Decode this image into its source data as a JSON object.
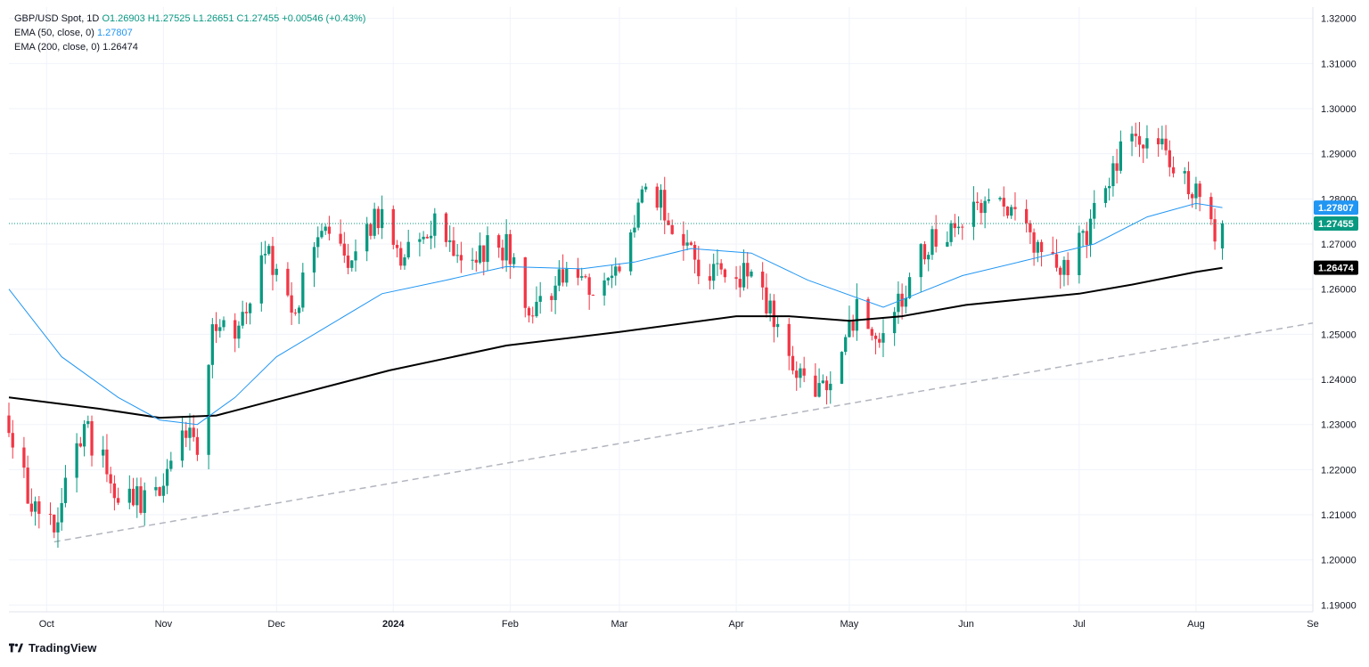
{
  "legend": {
    "symbol": "GBP/USD Spot, 1D",
    "ohlc": "O1.26903 H1.27525 L1.26651 C1.27455 +0.00546 (+0.43%)",
    "ema50_label": "EMA (50, close, 0)",
    "ema50_value": "1.27807",
    "ema200_label": "EMA (200, close, 0)",
    "ema200_value": "1.26474"
  },
  "branding": {
    "name": "TradingView",
    "icon": "tradingview-logo-icon"
  },
  "colors": {
    "up": "#089981",
    "down": "#f23645",
    "ema50": "#2196f3",
    "ema200": "#000000",
    "trendline": "#b2b5be",
    "grid": "#f0f3fa",
    "price_line": "#089981"
  },
  "chart_data": {
    "type": "candlestick",
    "title": "GBP/USD Spot, 1D",
    "ylim": [
      1.1885,
      1.3225
    ],
    "grid": true,
    "y_ticks": [
      "1.32000",
      "1.31000",
      "1.30000",
      "1.29000",
      "1.28000",
      "1.27000",
      "1.26000",
      "1.25000",
      "1.24000",
      "1.23000",
      "1.22000",
      "1.21000",
      "1.20000",
      "1.19000"
    ],
    "x_labels": [
      {
        "label": "Oct",
        "date": "2023-10-01"
      },
      {
        "label": "Nov",
        "date": "2023-11-01"
      },
      {
        "label": "Dec",
        "date": "2023-12-01"
      },
      {
        "label": "2024",
        "date": "2024-01-01"
      },
      {
        "label": "Feb",
        "date": "2024-02-01"
      },
      {
        "label": "Mar",
        "date": "2024-03-01"
      },
      {
        "label": "Apr",
        "date": "2024-04-01"
      },
      {
        "label": "May",
        "date": "2024-05-01"
      },
      {
        "label": "Jun",
        "date": "2024-06-01"
      },
      {
        "label": "Jul",
        "date": "2024-07-01"
      },
      {
        "label": "Aug",
        "date": "2024-08-01"
      },
      {
        "label": "Se",
        "date": "2024-09-01"
      }
    ],
    "x_range": [
      "2023-09-21",
      "2024-09-01"
    ],
    "last_price": {
      "value": 1.27455,
      "label": "1.27455"
    },
    "ema50_tag": {
      "value": 1.27807,
      "label": "1.27807"
    },
    "ema200_tag": {
      "value": 1.26474,
      "label": "1.26474"
    },
    "anchors": [
      {
        "date": "2023-09-21",
        "close": 1.23
      },
      {
        "date": "2023-09-26",
        "close": 1.215
      },
      {
        "date": "2023-10-03",
        "close": 1.206
      },
      {
        "date": "2023-10-11",
        "close": 1.23
      },
      {
        "date": "2023-10-19",
        "close": 1.216
      },
      {
        "date": "2023-10-25",
        "close": 1.213
      },
      {
        "date": "2023-10-31",
        "close": 1.215
      },
      {
        "date": "2023-11-07",
        "close": 1.23
      },
      {
        "date": "2023-11-10",
        "close": 1.223
      },
      {
        "date": "2023-11-14",
        "close": 1.25
      },
      {
        "date": "2023-11-22",
        "close": 1.253
      },
      {
        "date": "2023-11-28",
        "close": 1.27
      },
      {
        "date": "2023-12-06",
        "close": 1.256
      },
      {
        "date": "2023-12-14",
        "close": 1.275
      },
      {
        "date": "2023-12-20",
        "close": 1.265
      },
      {
        "date": "2023-12-28",
        "close": 1.277
      },
      {
        "date": "2024-01-03",
        "close": 1.265
      },
      {
        "date": "2024-01-12",
        "close": 1.275
      },
      {
        "date": "2024-01-19",
        "close": 1.268
      },
      {
        "date": "2024-01-31",
        "close": 1.27
      },
      {
        "date": "2024-02-05",
        "close": 1.254
      },
      {
        "date": "2024-02-13",
        "close": 1.262
      },
      {
        "date": "2024-02-20",
        "close": 1.26
      },
      {
        "date": "2024-02-29",
        "close": 1.263
      },
      {
        "date": "2024-03-08",
        "close": 1.285
      },
      {
        "date": "2024-03-15",
        "close": 1.274
      },
      {
        "date": "2024-03-21",
        "close": 1.266
      },
      {
        "date": "2024-03-28",
        "close": 1.262
      },
      {
        "date": "2024-04-05",
        "close": 1.264
      },
      {
        "date": "2024-04-10",
        "close": 1.254
      },
      {
        "date": "2024-04-16",
        "close": 1.245
      },
      {
        "date": "2024-04-22",
        "close": 1.234
      },
      {
        "date": "2024-05-03",
        "close": 1.255
      },
      {
        "date": "2024-05-09",
        "close": 1.25
      },
      {
        "date": "2024-05-15",
        "close": 1.258
      },
      {
        "date": "2024-05-21",
        "close": 1.27
      },
      {
        "date": "2024-06-03",
        "close": 1.278
      },
      {
        "date": "2024-06-12",
        "close": 1.279
      },
      {
        "date": "2024-06-18",
        "close": 1.27
      },
      {
        "date": "2024-06-27",
        "close": 1.265
      },
      {
        "date": "2024-07-08",
        "close": 1.28
      },
      {
        "date": "2024-07-15",
        "close": 1.297
      },
      {
        "date": "2024-07-22",
        "close": 1.291
      },
      {
        "date": "2024-07-29",
        "close": 1.285
      },
      {
        "date": "2024-08-02",
        "close": 1.28
      },
      {
        "date": "2024-08-05",
        "close": 1.277
      },
      {
        "date": "2024-08-06",
        "close": 1.27
      },
      {
        "date": "2024-08-07",
        "close": 1.26903
      }
    ],
    "last_candle": {
      "date": "2024-08-08",
      "open": 1.26903,
      "high": 1.27525,
      "low": 1.26651,
      "close": 1.27455
    },
    "ema50": [
      [
        "2023-09-21",
        1.26
      ],
      [
        "2023-10-05",
        1.245
      ],
      [
        "2023-10-20",
        1.236
      ],
      [
        "2023-10-31",
        1.231
      ],
      [
        "2023-11-10",
        1.23
      ],
      [
        "2023-11-20",
        1.236
      ],
      [
        "2023-12-01",
        1.245
      ],
      [
        "2023-12-15",
        1.252
      ],
      [
        "2023-12-29",
        1.259
      ],
      [
        "2024-01-15",
        1.262
      ],
      [
        "2024-01-31",
        1.265
      ],
      [
        "2024-02-20",
        1.2645
      ],
      [
        "2024-03-05",
        1.266
      ],
      [
        "2024-03-20",
        1.269
      ],
      [
        "2024-04-05",
        1.268
      ],
      [
        "2024-04-20",
        1.262
      ],
      [
        "2024-05-10",
        1.256
      ],
      [
        "2024-05-31",
        1.263
      ],
      [
        "2024-06-20",
        1.267
      ],
      [
        "2024-07-05",
        1.27
      ],
      [
        "2024-07-19",
        1.276
      ],
      [
        "2024-08-01",
        1.279
      ],
      [
        "2024-08-08",
        1.27807
      ]
    ],
    "ema200": [
      [
        "2023-09-21",
        1.236
      ],
      [
        "2023-10-15",
        1.2335
      ],
      [
        "2023-10-31",
        1.2315
      ],
      [
        "2023-11-15",
        1.232
      ],
      [
        "2023-12-01",
        1.2355
      ],
      [
        "2023-12-31",
        1.242
      ],
      [
        "2024-01-31",
        1.2475
      ],
      [
        "2024-03-01",
        1.2505
      ],
      [
        "2024-04-01",
        1.254
      ],
      [
        "2024-04-15",
        1.254
      ],
      [
        "2024-05-01",
        1.253
      ],
      [
        "2024-05-15",
        1.254
      ],
      [
        "2024-06-01",
        1.2565
      ],
      [
        "2024-07-01",
        1.259
      ],
      [
        "2024-07-15",
        1.261
      ],
      [
        "2024-08-01",
        1.2638
      ],
      [
        "2024-08-08",
        1.26474
      ]
    ],
    "trendline": [
      [
        "2023-10-03",
        1.204
      ],
      [
        "2024-09-01",
        1.2525
      ]
    ]
  }
}
